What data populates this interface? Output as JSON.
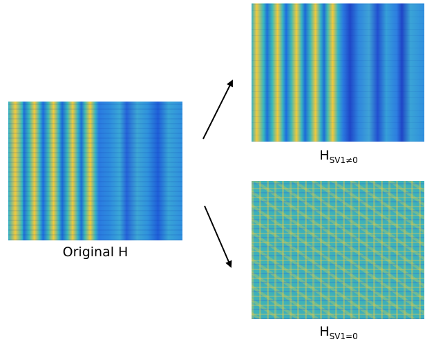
{
  "original": {
    "label": "Original H"
  },
  "top": {
    "main": "H",
    "sub": "SV1≠0"
  },
  "bottom": {
    "main": "H",
    "sub": "SV1=0"
  }
}
